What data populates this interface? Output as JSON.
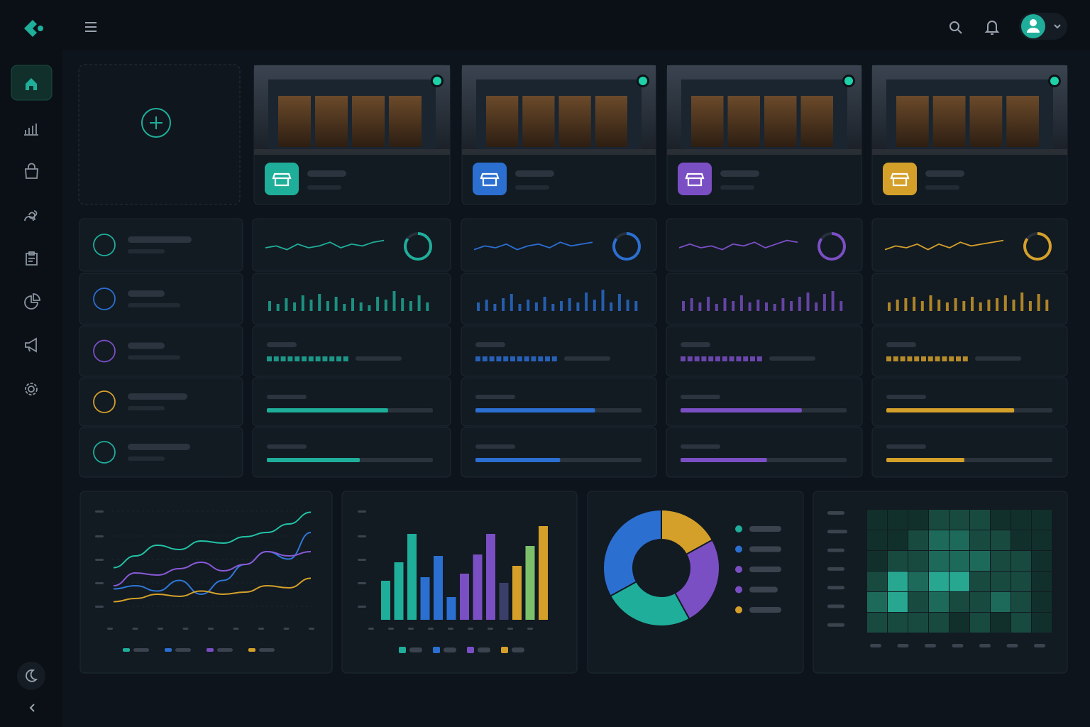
{
  "stores": [
    {
      "color": "#1fae9a",
      "ring": 85,
      "spark": [
        5,
        6,
        4,
        7,
        5,
        6,
        8,
        5,
        7,
        6,
        8,
        9
      ],
      "bars": [
        14,
        10,
        18,
        12,
        22,
        16,
        24,
        14,
        20,
        10,
        18,
        12,
        8,
        20,
        16,
        28,
        18,
        14,
        22,
        12
      ],
      "blocks": 12,
      "progress": [
        73,
        56
      ]
    },
    {
      "color": "#2b6fd1",
      "ring": 85,
      "spark": [
        4,
        6,
        5,
        7,
        4,
        6,
        7,
        5,
        8,
        6,
        7,
        8
      ],
      "bars": [
        12,
        16,
        10,
        18,
        24,
        10,
        16,
        12,
        20,
        10,
        14,
        18,
        12,
        26,
        16,
        30,
        12,
        24,
        16,
        14
      ],
      "blocks": 12,
      "progress": [
        72,
        51
      ]
    },
    {
      "color": "#7b4fc4",
      "ring": 85,
      "spark": [
        5,
        7,
        5,
        6,
        4,
        7,
        6,
        8,
        5,
        7,
        9,
        8
      ],
      "bars": [
        14,
        18,
        12,
        20,
        10,
        18,
        14,
        22,
        12,
        16,
        12,
        10,
        18,
        14,
        20,
        26,
        12,
        24,
        28,
        14
      ],
      "blocks": 12,
      "progress": [
        73,
        52
      ]
    },
    {
      "color": "#d4a02a",
      "ring": 85,
      "spark": [
        4,
        6,
        5,
        7,
        4,
        7,
        5,
        8,
        6,
        7,
        8,
        9
      ],
      "bars": [
        12,
        16,
        18,
        20,
        14,
        22,
        16,
        12,
        18,
        14,
        20,
        12,
        16,
        18,
        22,
        16,
        26,
        14,
        24,
        16
      ],
      "blocks": 12,
      "progress": [
        77,
        47
      ]
    }
  ],
  "line_chart": {
    "series": [
      {
        "color": "#22c3a6",
        "values": [
          47,
          58,
          68,
          64,
          72,
          70,
          76,
          80,
          88,
          99
        ]
      },
      {
        "color": "#2f78d6",
        "values": [
          27,
          30,
          25,
          35,
          22,
          35,
          50,
          62,
          55,
          80
        ]
      },
      {
        "color": "#8a5ad8",
        "values": [
          30,
          42,
          40,
          46,
          52,
          44,
          50,
          62,
          58,
          62
        ]
      },
      {
        "color": "#d4a02a",
        "values": [
          15,
          18,
          22,
          20,
          25,
          22,
          24,
          30,
          28,
          37
        ]
      }
    ]
  },
  "bar_chart": {
    "values": [
      55,
      81,
      121,
      60,
      90,
      32,
      65,
      92,
      121,
      52,
      76,
      104,
      132
    ],
    "colors": [
      "#1fae9a",
      "#1fae9a",
      "#1fae9a",
      "#2b6fd1",
      "#2b6fd1",
      "#2b6fd1",
      "#7b4fc4",
      "#7b4fc4",
      "#7b4fc4",
      "#3a3f6a",
      "#d4a02a",
      "#7cc06a",
      "#d4a02a"
    ]
  },
  "legend_colors": [
    "#1fae9a",
    "#2b6fd1",
    "#7b4fc4",
    "#d4a02a"
  ],
  "donut": {
    "values": [
      17,
      25,
      25,
      33
    ],
    "colors": [
      "#d4a02a",
      "#7b4fc4",
      "#1fae9a",
      "#2b6fd1"
    ],
    "legend_colors": [
      "#1fae9a",
      "#2b6fd1",
      "#7b4fc4",
      "#7b4fc4",
      "#d4a02a"
    ]
  },
  "heatmap": [
    [
      0,
      0,
      0,
      1,
      1,
      1,
      0,
      0,
      0
    ],
    [
      0,
      0,
      1,
      2,
      2,
      1,
      1,
      0,
      0
    ],
    [
      0,
      1,
      1,
      2,
      2,
      2,
      1,
      1,
      0
    ],
    [
      1,
      3,
      2,
      3,
      3,
      1,
      1,
      1,
      0
    ],
    [
      2,
      3,
      1,
      2,
      1,
      1,
      2,
      1,
      0
    ],
    [
      1,
      1,
      1,
      1,
      0,
      1,
      0,
      1,
      0
    ]
  ]
}
